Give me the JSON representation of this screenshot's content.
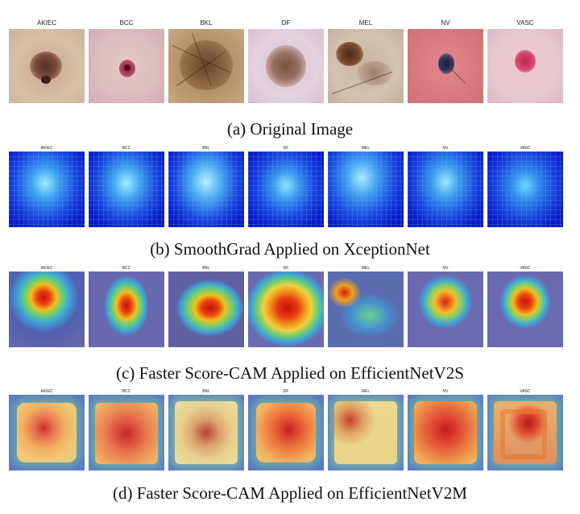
{
  "classes": [
    "AKIEC",
    "BCC",
    "BKL",
    "DF",
    "MEL",
    "NV",
    "VASC"
  ],
  "captions": {
    "a": "(a) Original Image",
    "b": "(b) SmoothGrad Applied on XceptionNet",
    "c": "(c) Faster Score-CAM Applied on EfficientNetV2S",
    "d": "(d) Faster Score-CAM Applied on EfficientNetV2M"
  }
}
